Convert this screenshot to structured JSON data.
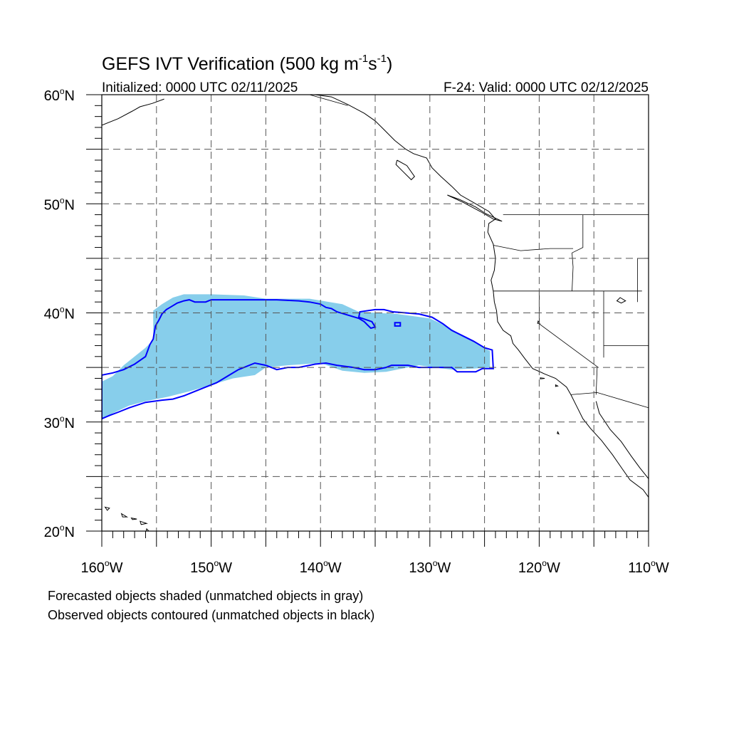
{
  "title": {
    "main": "GEFS IVT Verification (500 kg m",
    "exp1": "-1",
    "mid": "s",
    "exp2": "-1",
    "close": ")"
  },
  "subtitle_left": "Initialized: 0000 UTC 02/11/2025",
  "subtitle_right": "F-24: Valid: 0000 UTC 02/12/2025",
  "map": {
    "lon_range": [
      -160,
      -110
    ],
    "lat_range": [
      20,
      60
    ],
    "lon_ticks": [
      {
        "value": -160,
        "label": "160",
        "suffix": "W"
      },
      {
        "value": -150,
        "label": "150",
        "suffix": "W"
      },
      {
        "value": -140,
        "label": "140",
        "suffix": "W"
      },
      {
        "value": -130,
        "label": "130",
        "suffix": "W"
      },
      {
        "value": -120,
        "label": "120",
        "suffix": "W"
      },
      {
        "value": -110,
        "label": "110",
        "suffix": "W"
      }
    ],
    "lat_ticks": [
      {
        "value": 20,
        "label": "20",
        "suffix": "N"
      },
      {
        "value": 30,
        "label": "30",
        "suffix": "N"
      },
      {
        "value": 40,
        "label": "40",
        "suffix": "N"
      },
      {
        "value": 50,
        "label": "50",
        "suffix": "N"
      },
      {
        "value": 60,
        "label": "60",
        "suffix": "N"
      }
    ],
    "grid_lons": [
      -155,
      -150,
      -145,
      -140,
      -135,
      -130,
      -125,
      -120,
      -115
    ],
    "grid_lats": [
      25,
      30,
      35,
      40,
      45,
      50,
      55
    ],
    "forecast_fill_color": "#87ceeb",
    "observed_contour_color": "#0000ff",
    "forecast_object": [
      [
        -160,
        33.7
      ],
      [
        -159,
        34.2
      ],
      [
        -158,
        35.2
      ],
      [
        -157,
        36.0
      ],
      [
        -156,
        36.8
      ],
      [
        -155.3,
        37.5
      ],
      [
        -155.3,
        40.2
      ],
      [
        -154.5,
        40.8
      ],
      [
        -153.5,
        41.4
      ],
      [
        -152.5,
        41.7
      ],
      [
        -150,
        41.7
      ],
      [
        -147,
        41.6
      ],
      [
        -145,
        41.3
      ],
      [
        -141,
        41.3
      ],
      [
        -138,
        40.8
      ],
      [
        -136.5,
        40.1
      ],
      [
        -133,
        39.9
      ],
      [
        -130,
        39.5
      ],
      [
        -128.5,
        38.8
      ],
      [
        -127.5,
        38.2
      ],
      [
        -126,
        37.4
      ],
      [
        -124.5,
        36.5
      ],
      [
        -124.5,
        35.0
      ],
      [
        -126,
        34.9
      ],
      [
        -128,
        34.8
      ],
      [
        -131,
        35.2
      ],
      [
        -134,
        34.6
      ],
      [
        -136,
        34.5
      ],
      [
        -138,
        34.7
      ],
      [
        -140,
        35.4
      ],
      [
        -143,
        35.2
      ],
      [
        -145,
        35.0
      ],
      [
        -146,
        34.3
      ],
      [
        -148,
        34.0
      ],
      [
        -150,
        33.4
      ],
      [
        -152,
        32.8
      ],
      [
        -154,
        32.3
      ],
      [
        -156,
        31.9
      ],
      [
        -157.5,
        31.5
      ],
      [
        -159,
        30.8
      ],
      [
        -160,
        30.2
      ]
    ],
    "observed_object": [
      [
        -160,
        34.3
      ],
      [
        -159,
        34.5
      ],
      [
        -158,
        34.8
      ],
      [
        -157,
        35.3
      ],
      [
        -156,
        36.0
      ],
      [
        -155.6,
        37.1
      ],
      [
        -155.3,
        37.6
      ],
      [
        -155.1,
        38.8
      ],
      [
        -154.8,
        39.3
      ],
      [
        -154.5,
        39.9
      ],
      [
        -154.1,
        40.3
      ],
      [
        -153.6,
        40.6
      ],
      [
        -153.1,
        40.9
      ],
      [
        -152.5,
        41.1
      ],
      [
        -152,
        41.2
      ],
      [
        -151.5,
        41.0
      ],
      [
        -150.5,
        41.0
      ],
      [
        -150,
        41.2
      ],
      [
        -148,
        41.2
      ],
      [
        -146,
        41.2
      ],
      [
        -144,
        41.2
      ],
      [
        -142,
        41.1
      ],
      [
        -141,
        41.0
      ],
      [
        -140,
        40.8
      ],
      [
        -139.5,
        40.5
      ],
      [
        -139,
        40.4
      ],
      [
        -138.5,
        40.1
      ],
      [
        -137.5,
        39.8
      ],
      [
        -136.5,
        39.5
      ],
      [
        -136,
        39.2
      ],
      [
        -135.7,
        38.9
      ],
      [
        -135.4,
        38.6
      ],
      [
        -135,
        38.7
      ],
      [
        -135.3,
        39.2
      ],
      [
        -136.5,
        39.6
      ],
      [
        -136.4,
        40.1
      ],
      [
        -135,
        40.3
      ],
      [
        -134.2,
        40.3
      ],
      [
        -133.4,
        40.1
      ],
      [
        -132.2,
        40.0
      ],
      [
        -131,
        39.9
      ],
      [
        -129.8,
        39.6
      ],
      [
        -128.8,
        39.0
      ],
      [
        -128,
        38.4
      ],
      [
        -127,
        37.9
      ],
      [
        -126,
        37.4
      ],
      [
        -125,
        36.8
      ],
      [
        -124.3,
        36.6
      ],
      [
        -124.2,
        34.9
      ],
      [
        -125.2,
        34.9
      ],
      [
        -125.8,
        34.6
      ],
      [
        -126.5,
        34.6
      ],
      [
        -127.5,
        34.6
      ],
      [
        -128,
        35.0
      ],
      [
        -131,
        35.0
      ],
      [
        -132,
        35.2
      ],
      [
        -133.5,
        35.2
      ],
      [
        -134,
        35.0
      ],
      [
        -135,
        34.8
      ],
      [
        -136,
        34.8
      ],
      [
        -137,
        35.0
      ],
      [
        -138.5,
        35.2
      ],
      [
        -139.5,
        35.4
      ],
      [
        -140.5,
        35.3
      ],
      [
        -141,
        35.2
      ],
      [
        -142,
        35.0
      ],
      [
        -143,
        35.0
      ],
      [
        -144,
        34.8
      ],
      [
        -145,
        35.2
      ],
      [
        -146,
        35.4
      ],
      [
        -147.5,
        34.8
      ],
      [
        -148.5,
        34.2
      ],
      [
        -149.5,
        33.6
      ],
      [
        -150.5,
        33.2
      ],
      [
        -151.5,
        32.8
      ],
      [
        -152.5,
        32.4
      ],
      [
        -153.5,
        32.1
      ],
      [
        -154.5,
        32.0
      ],
      [
        -156,
        31.8
      ],
      [
        -157.5,
        31.3
      ],
      [
        -158.5,
        30.9
      ],
      [
        -159.3,
        30.6
      ],
      [
        -160,
        30.3
      ]
    ],
    "observed_small_box": [
      [
        -133.2,
        38.8
      ],
      [
        -132.7,
        38.8
      ],
      [
        -132.7,
        39.1
      ],
      [
        -133.2,
        39.1
      ]
    ],
    "coastline": [
      [
        -140.5,
        60
      ],
      [
        -139,
        59.8
      ],
      [
        -137.5,
        59.1
      ],
      [
        -136,
        58.3
      ],
      [
        -135,
        57.6
      ],
      [
        -134.2,
        56.8
      ],
      [
        -133.2,
        55.8
      ],
      [
        -132.2,
        55
      ],
      [
        -131.5,
        54.6
      ],
      [
        -130.3,
        54.2
      ],
      [
        -129.8,
        53.3
      ],
      [
        -129,
        52.5
      ],
      [
        -128,
        51.6
      ],
      [
        -127.2,
        50.8
      ],
      [
        -125.8,
        50
      ],
      [
        -124.6,
        49.3
      ],
      [
        -124,
        48.6
      ],
      [
        -124.6,
        48.2
      ],
      [
        -124.7,
        47.4
      ],
      [
        -124.2,
        46.3
      ],
      [
        -124,
        45
      ],
      [
        -124.1,
        43.9
      ],
      [
        -124.4,
        43
      ],
      [
        -124.2,
        42
      ],
      [
        -124.1,
        41
      ],
      [
        -123.9,
        40.2
      ],
      [
        -123.8,
        39.2
      ],
      [
        -123.3,
        38.4
      ],
      [
        -122.6,
        37.9
      ],
      [
        -122.4,
        37.2
      ],
      [
        -121.9,
        36.6
      ],
      [
        -121.3,
        35.8
      ],
      [
        -120.6,
        34.9
      ],
      [
        -119.5,
        34.4
      ],
      [
        -118.5,
        34
      ],
      [
        -117.5,
        33.2
      ],
      [
        -117.1,
        32.5
      ],
      [
        -116.6,
        31.5
      ],
      [
        -116,
        30.3
      ],
      [
        -115.3,
        29.4
      ],
      [
        -114.3,
        28.3
      ],
      [
        -113.3,
        27
      ],
      [
        -112.4,
        25.7
      ],
      [
        -111.7,
        24.7
      ],
      [
        -110.5,
        23.8
      ],
      [
        -110,
        23.1
      ]
    ],
    "gulf_california": [
      [
        -114.8,
        31.9
      ],
      [
        -114.5,
        30.8
      ],
      [
        -113.5,
        29.3
      ],
      [
        -112.5,
        28.2
      ],
      [
        -111.6,
        26.9
      ],
      [
        -110.8,
        25.8
      ],
      [
        -110,
        24.8
      ]
    ],
    "vancouver_island": [
      [
        -128.4,
        50.8
      ],
      [
        -127.3,
        50.4
      ],
      [
        -125.8,
        49.7
      ],
      [
        -124.9,
        49.1
      ],
      [
        -123.4,
        48.4
      ],
      [
        -124.2,
        48.6
      ],
      [
        -125.4,
        49.3
      ],
      [
        -126.9,
        50.1
      ],
      [
        -128.4,
        50.8
      ]
    ],
    "haida_gwaii": [
      [
        -133,
        54
      ],
      [
        -132.1,
        53.5
      ],
      [
        -131.4,
        52.5
      ],
      [
        -131.7,
        52.2
      ],
      [
        -132.5,
        53
      ],
      [
        -133.1,
        53.6
      ],
      [
        -133,
        54
      ]
    ],
    "alaska_sw": [
      [
        -160,
        57.2
      ],
      [
        -158.5,
        57.8
      ],
      [
        -157.2,
        58.5
      ],
      [
        -156.5,
        58.9
      ],
      [
        -155.4,
        59.2
      ],
      [
        -154.3,
        59.6
      ]
    ],
    "borders": [
      [
        [
          -123.3,
          49
        ],
        [
          -110,
          49
        ]
      ],
      [
        [
          -116,
          49
        ],
        [
          -116,
          46
        ],
        [
          -117,
          45.5
        ],
        [
          -116.9,
          44.2
        ],
        [
          -117,
          42
        ]
      ],
      [
        [
          -124.2,
          42
        ],
        [
          -110.6,
          42
        ]
      ],
      [
        [
          -120,
          42
        ],
        [
          -120,
          39
        ],
        [
          -114.6,
          35
        ]
      ],
      [
        [
          -114.1,
          42
        ],
        [
          -114.1,
          35.9
        ]
      ],
      [
        [
          -114.1,
          37
        ],
        [
          -110,
          37
        ]
      ],
      [
        [
          -124.2,
          46.2
        ],
        [
          -121.7,
          45.7
        ],
        [
          -119,
          45.9
        ],
        [
          -116.9,
          45.9
        ]
      ],
      [
        [
          -117.1,
          32.5
        ],
        [
          -114.7,
          32.7
        ],
        [
          -110,
          31.3
        ]
      ],
      [
        [
          -114.8,
          32.5
        ],
        [
          -114.7,
          35
        ]
      ],
      [
        [
          -111,
          45
        ],
        [
          -110,
          45
        ]
      ],
      [
        [
          -111,
          45
        ],
        [
          -111,
          41
        ]
      ],
      [
        [
          -141,
          60
        ],
        [
          -137.5,
          59
        ]
      ]
    ],
    "islands": [
      [
        [
          -155.9,
          20.2
        ],
        [
          -155.2,
          19.5
        ],
        [
          -155.6,
          19.3
        ],
        [
          -156,
          19.7
        ],
        [
          -155.9,
          20.2
        ]
      ],
      [
        [
          -156.5,
          20.9
        ],
        [
          -155.9,
          20.7
        ],
        [
          -156.4,
          20.6
        ],
        [
          -156.5,
          20.9
        ]
      ],
      [
        [
          -157.3,
          21.2
        ],
        [
          -156.8,
          21.1
        ],
        [
          -157.2,
          21.05
        ],
        [
          -157.3,
          21.2
        ]
      ],
      [
        [
          -158.2,
          21.6
        ],
        [
          -157.7,
          21.3
        ],
        [
          -158.1,
          21.3
        ],
        [
          -158.2,
          21.6
        ]
      ],
      [
        [
          -159.7,
          22.2
        ],
        [
          -159.3,
          22.1
        ],
        [
          -159.5,
          21.9
        ],
        [
          -159.7,
          22.2
        ]
      ],
      [
        [
          -119.9,
          34.05
        ],
        [
          -119.5,
          34.0
        ],
        [
          -119.9,
          33.95
        ],
        [
          -119.9,
          34.05
        ]
      ],
      [
        [
          -118.5,
          33.4
        ],
        [
          -118.3,
          33.3
        ],
        [
          -118.5,
          33.25
        ],
        [
          -118.5,
          33.4
        ]
      ],
      [
        [
          -118.3,
          29.1
        ],
        [
          -118.2,
          28.9
        ],
        [
          -118.35,
          28.95
        ],
        [
          -118.3,
          29.1
        ]
      ]
    ],
    "lakes": [
      [
        [
          -112.6,
          41.4
        ],
        [
          -112.1,
          41.1
        ],
        [
          -112.5,
          40.9
        ],
        [
          -112.9,
          41.1
        ],
        [
          -112.6,
          41.4
        ]
      ],
      [
        [
          -120.1,
          39.25
        ],
        [
          -119.95,
          39.0
        ],
        [
          -120.15,
          39.05
        ],
        [
          -120.1,
          39.25
        ]
      ]
    ]
  },
  "footnote_1": "Forecasted objects shaded (unmatched objects in gray)",
  "footnote_2": "Observed objects contoured (unmatched objects in black)"
}
